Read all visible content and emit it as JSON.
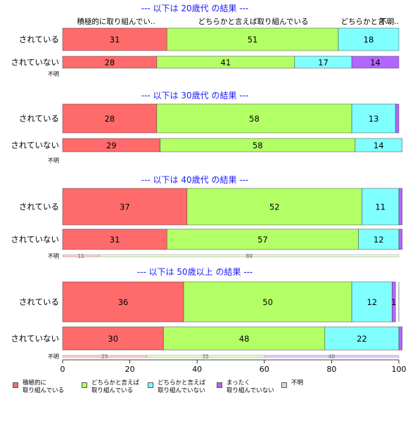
{
  "chart_data": {
    "type": "bar",
    "orientation": "horizontal",
    "stacked": true,
    "xlim": [
      0,
      100
    ],
    "x_ticks": [
      "0",
      "20",
      "40",
      "60",
      "80",
      "100"
    ],
    "colors": [
      "#FF6B6B",
      "#B3FF66",
      "#80FFFF",
      "#B266FF",
      "#D9D9D9"
    ],
    "column_headers": [
      "積極的に取り組んでい..",
      "どちらかと言えば取り組んでいる",
      "どちらかと言...",
      "不明.."
    ],
    "legend": [
      "積極的に\n取り組んでいる",
      "どちらかと言えば\n取り組んでいる",
      "どちらかと言えば\n取り組んでいない",
      "まったく\n取り組んでいない",
      "不明"
    ],
    "panels": [
      {
        "title": "--- 以下は 20歳代 の結果 ---",
        "bars": [
          {
            "label": "されている",
            "values": [
              31,
              51,
              18,
              0,
              0
            ],
            "labels": [
              "31",
              "51",
              "18",
              "",
              ""
            ]
          },
          {
            "label": "されていない",
            "values": [
              28,
              41,
              17,
              14,
              0
            ],
            "labels": [
              "28",
              "41",
              "17",
              "14",
              ""
            ]
          }
        ],
        "unknown": {
          "label": "不明",
          "values": [],
          "labels": []
        }
      },
      {
        "title": "--- 以下は 30歳代 の結果 ---",
        "bars": [
          {
            "label": "されている",
            "values": [
              28,
              58,
              13,
              1,
              0
            ],
            "labels": [
              "28",
              "58",
              "13",
              "",
              ""
            ]
          },
          {
            "label": "されていない",
            "values": [
              29,
              58,
              14,
              0,
              0
            ],
            "labels": [
              "29",
              "58",
              "14",
              "",
              ""
            ]
          }
        ],
        "unknown": {
          "label": "不明",
          "values": [],
          "labels": []
        }
      },
      {
        "title": "--- 以下は 40歳代 の結果 ---",
        "bars": [
          {
            "label": "されている",
            "values": [
              37,
              52,
              11,
              1,
              0
            ],
            "labels": [
              "37",
              "52",
              "11",
              "",
              ""
            ]
          },
          {
            "label": "されていない",
            "values": [
              31,
              57,
              12,
              1,
              0
            ],
            "labels": [
              "31",
              "57",
              "12",
              "",
              ""
            ]
          }
        ],
        "unknown": {
          "label": "不明",
          "values": [
            11,
            89,
            0,
            0,
            0
          ],
          "labels": [
            "11",
            "89",
            "",
            "",
            ""
          ]
        }
      },
      {
        "title": "--- 以下は 50歳以上 の結果 ---",
        "bars": [
          {
            "label": "されている",
            "values": [
              36,
              50,
              12,
              1,
              0
            ],
            "labels": [
              "36",
              "50",
              "12",
              "1",
              ""
            ]
          },
          {
            "label": "されていない",
            "values": [
              30,
              48,
              22,
              1,
              0
            ],
            "labels": [
              "30",
              "48",
              "22",
              "",
              ""
            ]
          }
        ],
        "unknown": {
          "label": "不明",
          "values": [
            25,
            35,
            0,
            40,
            0
          ],
          "labels": [
            "25",
            "35",
            "",
            "40",
            ""
          ]
        }
      }
    ]
  }
}
